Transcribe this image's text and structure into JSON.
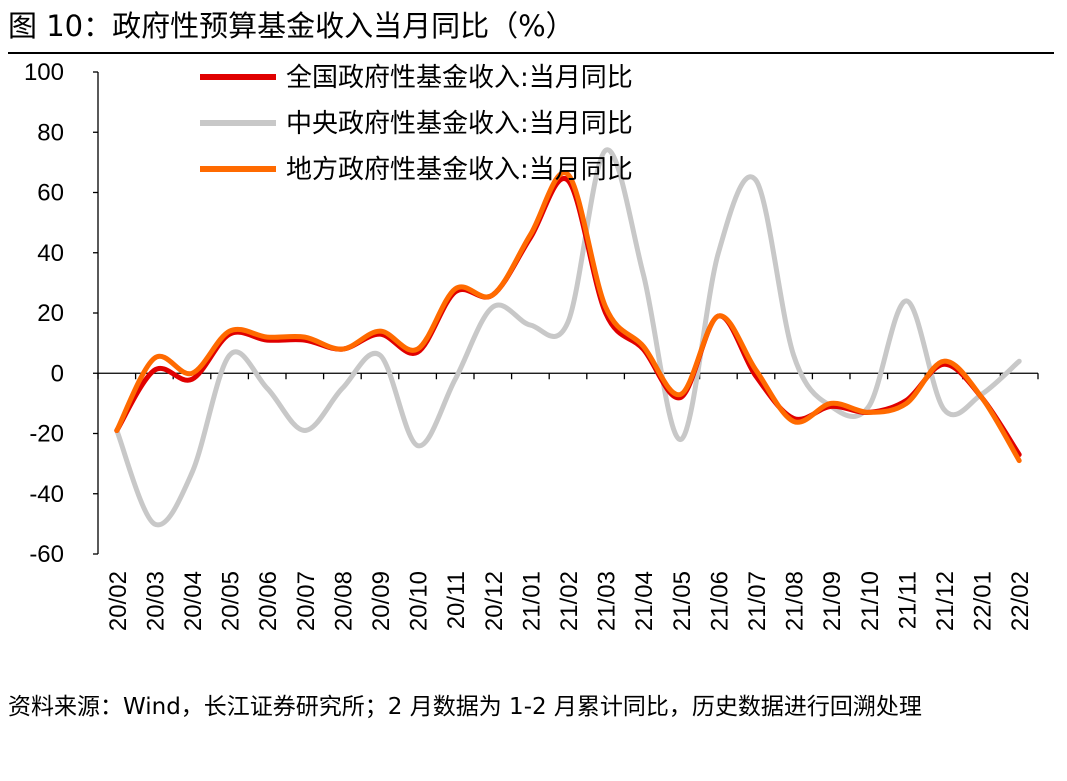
{
  "figure": {
    "title": "图 10：政府性预算基金收入当月同比（%）",
    "source": "资料来源：Wind，长江证券研究所；2 月数据为 1-2 月累计同比，历史数据进行回溯处理"
  },
  "chart_data": {
    "type": "line",
    "title": "",
    "xlabel": "",
    "ylabel": "",
    "ylim": [
      -60,
      100
    ],
    "yticks": [
      100,
      80,
      60,
      40,
      20,
      0,
      -20,
      -40,
      -60
    ],
    "grid": false,
    "legend_position": "top-center",
    "categories": [
      "20/02",
      "20/03",
      "20/04",
      "20/05",
      "20/06",
      "20/07",
      "20/08",
      "20/09",
      "20/10",
      "20/11",
      "20/12",
      "21/01",
      "21/02",
      "21/03",
      "21/04",
      "21/05",
      "21/06",
      "21/07",
      "21/08",
      "21/09",
      "21/10",
      "21/11",
      "21/12",
      "22/01",
      "22/02"
    ],
    "series": [
      {
        "name": "全国政府性基金收入:当月同比",
        "color": "#e00000",
        "values": [
          -19,
          1,
          -2,
          13,
          11,
          11,
          8,
          13,
          7,
          27,
          26,
          45,
          64,
          20,
          8,
          -8,
          19,
          -1,
          -15,
          -11,
          -13,
          -9,
          3,
          -8,
          -27
        ]
      },
      {
        "name": "中央政府性基金收入:当月同比",
        "color": "#c8c8c8",
        "values": [
          -19,
          -50,
          -33,
          6,
          -5,
          -19,
          -5,
          6,
          -24,
          -2,
          22,
          16,
          17,
          74,
          33,
          -22,
          40,
          64,
          6,
          -11,
          -11,
          24,
          -12,
          -7,
          4
        ]
      },
      {
        "name": "地方政府性基金收入:当月同比",
        "color": "#ff6a00",
        "values": [
          -19,
          5,
          0,
          14,
          12,
          12,
          8,
          14,
          8,
          28,
          26,
          46,
          66,
          22,
          9,
          -7,
          19,
          1,
          -16,
          -10,
          -13,
          -10,
          4,
          -8,
          -29
        ]
      }
    ]
  }
}
